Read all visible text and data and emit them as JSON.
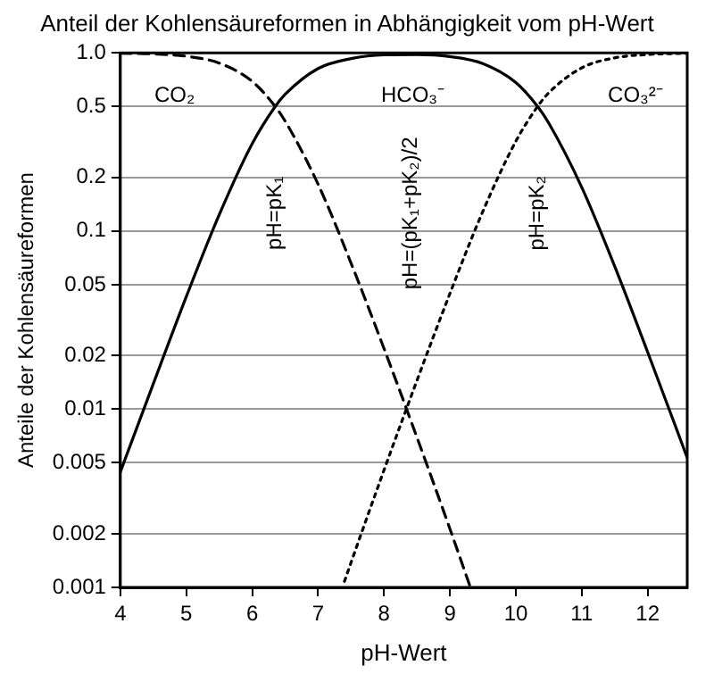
{
  "chart_data": {
    "type": "line",
    "title": "Anteil der Kohlensäureformen in Abhängigkeit vom pH-Wert",
    "xlabel": "pH-Wert",
    "ylabel": "Anteile der Kohlensäureformen",
    "log": "y",
    "grid": "y",
    "legend": false,
    "marker": "none",
    "xlim": [
      4,
      12.6
    ],
    "xticks": [
      4,
      5,
      6,
      7,
      8,
      9,
      10,
      11,
      12
    ],
    "ylim": [
      0.001,
      1
    ],
    "yticks": [
      0.001,
      0.002,
      0.005,
      0.01,
      0.02,
      0.05,
      0.1,
      0.2,
      0.5,
      {
        "value": 1,
        "label": "1.0"
      }
    ],
    "series": [
      {
        "name": "CO₂",
        "color": "#000000",
        "line_style": "dashed",
        "x": [
          4,
          4.5,
          5,
          5.5,
          6,
          6.35,
          6.5,
          7,
          7.5,
          8,
          8.5,
          9,
          9.3
        ],
        "values": [
          0.9955,
          0.986,
          0.957,
          0.876,
          0.691,
          0.5,
          0.414,
          0.183,
          0.066,
          0.0219,
          0.00694,
          0.00213,
          0.001025
        ]
      },
      {
        "name": "HCO₃⁻",
        "color": "#000000",
        "line_style": "solid",
        "x": [
          4,
          4.5,
          5,
          5.5,
          6,
          6.35,
          6.5,
          7,
          7.5,
          8,
          8.5,
          9,
          9.5,
          10,
          10.33,
          10.5,
          11,
          11.5,
          12,
          12.5,
          12.6
        ],
        "values": [
          0.00445,
          0.0139,
          0.0428,
          0.1235,
          0.309,
          0.5,
          0.585,
          0.817,
          0.928,
          0.974,
          0.978,
          0.953,
          0.87,
          0.681,
          0.5,
          0.403,
          0.176,
          0.0633,
          0.0209,
          0.00671,
          0.00534
        ]
      },
      {
        "name": "CO₃²⁻",
        "color": "#000000",
        "line_style": "dotted",
        "x": [
          7.4,
          7.5,
          8,
          8.5,
          9,
          9.5,
          10,
          10.33,
          10.5,
          11,
          11.5,
          12,
          12.5,
          12.6
        ],
        "values": [
          0.00108,
          0.00138,
          0.00455,
          0.0145,
          0.0446,
          0.129,
          0.319,
          0.5,
          0.597,
          0.824,
          0.937,
          0.979,
          0.993,
          0.9946
        ]
      }
    ],
    "annotations": [
      "pH=pK₁",
      "pH=(pK₁+pK₂)/2",
      "pH=pK₂"
    ]
  }
}
